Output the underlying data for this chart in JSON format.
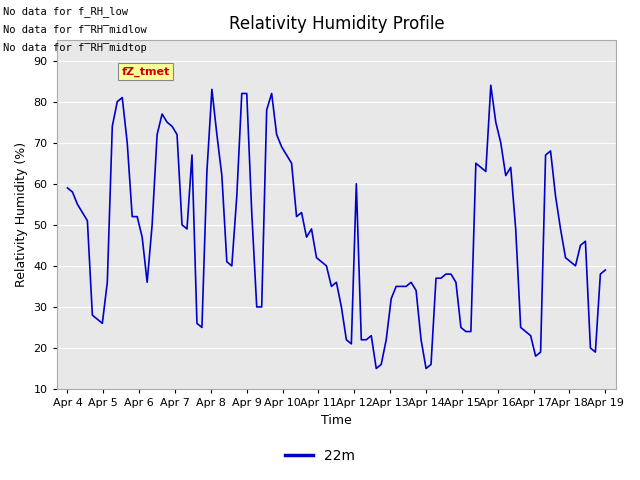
{
  "title": "Relativity Humidity Profile",
  "xlabel": "Time",
  "ylabel": "Relativity Humidity (%)",
  "ylim": [
    10,
    95
  ],
  "yticks": [
    10,
    20,
    30,
    40,
    50,
    60,
    70,
    80,
    90
  ],
  "line_color": "#0000cc",
  "line_width": 1.2,
  "legend_label": "22m",
  "legend_line_color": "#0000cc",
  "plot_bg_color": "#e8e8e8",
  "fig_bg_color": "#ffffff",
  "no_data_texts": [
    "No data for f_RH_low",
    "No data for f̅RH̅midlow",
    "No data for f̅RH̅midtop"
  ],
  "fz_tmet_label": "fZ_tmet",
  "fz_tmet_box_color": "#ffff99",
  "fz_tmet_text_color": "#cc0000",
  "x_tick_labels": [
    "Apr 4",
    "Apr 5",
    "Apr 6",
    "Apr 7",
    "Apr 8",
    "Apr 9",
    "Apr 10",
    "Apr 11",
    "Apr 12",
    "Apr 13",
    "Apr 14",
    "Apr 15",
    "Apr 16",
    "Apr 17",
    "Apr 18",
    "Apr 19"
  ],
  "y_values": [
    59,
    58,
    55,
    53,
    51,
    28,
    27,
    26,
    36,
    74,
    80,
    81,
    70,
    52,
    52,
    47,
    36,
    50,
    72,
    77,
    75,
    74,
    72,
    50,
    49,
    67,
    26,
    25,
    63,
    83,
    72,
    62,
    41,
    40,
    57,
    82,
    82,
    53,
    30,
    30,
    78,
    82,
    72,
    69,
    67,
    65,
    52,
    53,
    47,
    49,
    42,
    41,
    40,
    35,
    36,
    30,
    22,
    21,
    60,
    22,
    22,
    23,
    15,
    16,
    22,
    32,
    35,
    35,
    35,
    36,
    34,
    22,
    15,
    16,
    37,
    37,
    38,
    38,
    36,
    25,
    24,
    24,
    65,
    64,
    63,
    84,
    75,
    70,
    62,
    64,
    49,
    25,
    24,
    23,
    18,
    19,
    67,
    68,
    57,
    49,
    42,
    41,
    40,
    45,
    46,
    20,
    19,
    38,
    39
  ]
}
